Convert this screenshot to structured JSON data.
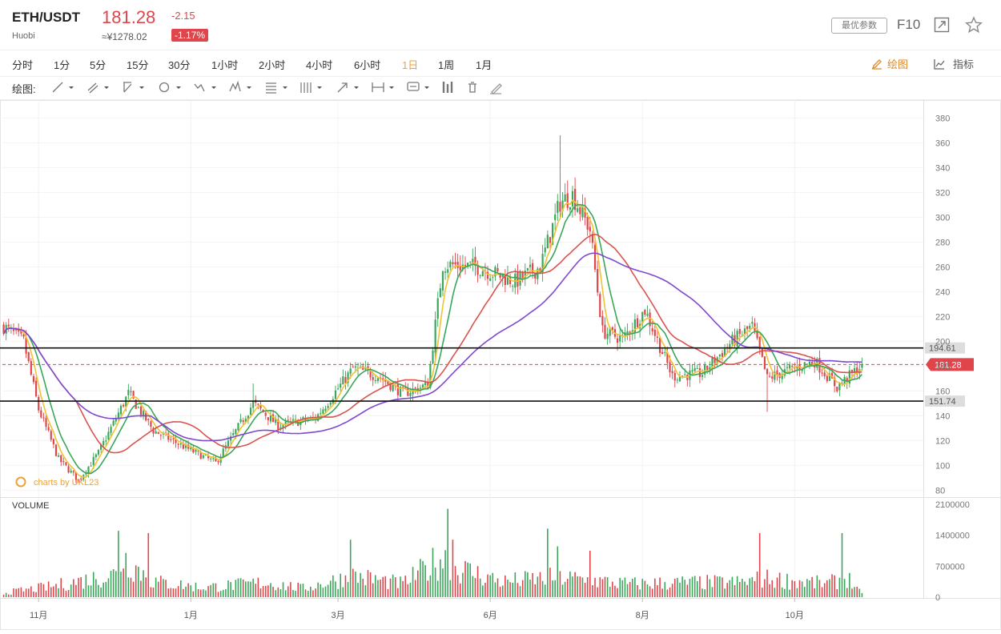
{
  "header": {
    "pair": "ETH/USDT",
    "exchange": "Huobi",
    "price": "181.28",
    "change": "-2.15",
    "cny": "≈¥1278.02",
    "pct": "-1.17%",
    "best_params": "最优参数",
    "f10": "F10"
  },
  "timeframes": [
    "分时",
    "1分",
    "5分",
    "15分",
    "30分",
    "1小时",
    "2小时",
    "4小时",
    "6小时",
    "1日",
    "1周",
    "1月"
  ],
  "active_timeframe": "1日",
  "right_buttons": {
    "draw": "绘图",
    "indicator": "指标"
  },
  "toolbar": {
    "label": "绘图:",
    "tools": [
      "line-tool-icon",
      "multi-line-tool-icon",
      "channel-tool-icon",
      "shape-tool-icon",
      "wave-tool-icon",
      "pattern-tool-icon",
      "fib-tool-icon",
      "gann-tool-icon",
      "arrow-tool-icon",
      "measure-tool-icon",
      "annotation-tool-icon",
      "candle-tool-icon",
      "delete-tool-icon",
      "eraser-tool-icon"
    ]
  },
  "watermark": "charts by UKL23",
  "volume_label": "VOLUME",
  "colors": {
    "up": "#3aa65a",
    "down": "#e0454b",
    "ma1": "#f1c232",
    "ma2": "#3aa65a",
    "ma3": "#d9534f",
    "ma4": "#7e49d1",
    "price_line": "#e0454b",
    "level_tag": "#dddddd"
  },
  "chart_data": {
    "type": "candlestick",
    "yticks": [
      80,
      100,
      120,
      140,
      160,
      180,
      200,
      220,
      240,
      260,
      280,
      300,
      320,
      340,
      360,
      380
    ],
    "ylim": [
      75,
      388
    ],
    "volume_ticks": [
      "2100000",
      "1400000",
      "700000",
      "0"
    ],
    "volume_max": 2100000,
    "xlabels": [
      {
        "label": "11月",
        "index": 14
      },
      {
        "label": "1月",
        "index": 75
      },
      {
        "label": "3月",
        "index": 134
      },
      {
        "label": "6月",
        "index": 195
      },
      {
        "label": "8月",
        "index": 256
      },
      {
        "label": "10月",
        "index": 317
      }
    ],
    "levels": [
      {
        "value": 194.61,
        "label": "194.61"
      },
      {
        "value": 151.74,
        "label": "151.74"
      }
    ],
    "current_price": 181.28,
    "current_price_label": "181.28",
    "keypoints": [
      [
        0,
        212
      ],
      [
        8,
        200
      ],
      [
        14,
        145
      ],
      [
        22,
        105
      ],
      [
        30,
        88
      ],
      [
        38,
        110
      ],
      [
        50,
        158
      ],
      [
        60,
        128
      ],
      [
        75,
        112
      ],
      [
        85,
        102
      ],
      [
        100,
        150
      ],
      [
        110,
        132
      ],
      [
        125,
        138
      ],
      [
        140,
        178
      ],
      [
        150,
        172
      ],
      [
        160,
        158
      ],
      [
        170,
        165
      ],
      [
        176,
        262
      ],
      [
        190,
        260
      ],
      [
        205,
        248
      ],
      [
        215,
        260
      ],
      [
        223,
        312
      ],
      [
        228,
        318
      ],
      [
        235,
        290
      ],
      [
        240,
        208
      ],
      [
        248,
        202
      ],
      [
        257,
        225
      ],
      [
        268,
        172
      ],
      [
        280,
        174
      ],
      [
        292,
        200
      ],
      [
        300,
        212
      ],
      [
        306,
        170
      ],
      [
        315,
        177
      ],
      [
        325,
        184
      ],
      [
        334,
        163
      ],
      [
        344,
        181
      ]
    ],
    "volume_keypoints": [
      [
        0,
        100000
      ],
      [
        20,
        250000
      ],
      [
        45,
        520000
      ],
      [
        48,
        900000
      ],
      [
        60,
        350000
      ],
      [
        80,
        220000
      ],
      [
        105,
        330000
      ],
      [
        120,
        200000
      ],
      [
        140,
        480000
      ],
      [
        160,
        300000
      ],
      [
        176,
        900000
      ],
      [
        182,
        650000
      ],
      [
        200,
        350000
      ],
      [
        222,
        450000
      ],
      [
        235,
        380000
      ],
      [
        250,
        300000
      ],
      [
        275,
        330000
      ],
      [
        295,
        330000
      ],
      [
        305,
        420000
      ],
      [
        330,
        300000
      ],
      [
        338,
        450000
      ],
      [
        344,
        60000
      ]
    ],
    "volume_spikes": [
      [
        46,
        1500000
      ],
      [
        58,
        1450000
      ],
      [
        139,
        1300000
      ],
      [
        178,
        2000000
      ],
      [
        218,
        1550000
      ],
      [
        235,
        1050000
      ],
      [
        303,
        1450000
      ],
      [
        336,
        1450000
      ],
      [
        180,
        1300000
      ],
      [
        222,
        1150000
      ]
    ],
    "ma_periods": [
      5,
      10,
      30,
      60
    ]
  }
}
